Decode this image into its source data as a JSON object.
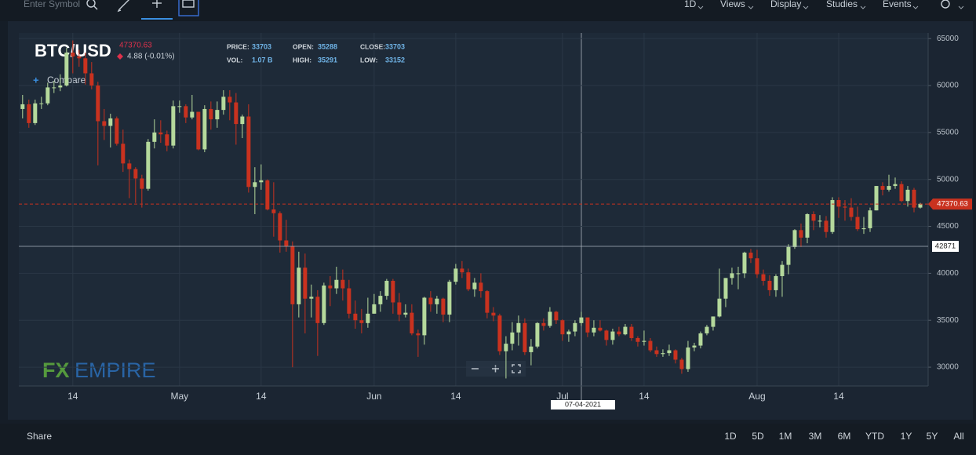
{
  "toolbar": {
    "symbol_placeholder": "Enter Symbol",
    "interval": "1D",
    "menus": [
      "Views",
      "Display",
      "Studies",
      "Events"
    ]
  },
  "chart_data": {
    "type": "candlestick",
    "symbol": "BTC/USD",
    "last_price": 47370.63,
    "change": "4.88 (-0.01%)",
    "compare": "Compare",
    "watermark": [
      "FX",
      "EMPIRE"
    ],
    "stats": [
      [
        {
          "label": "PRICE:",
          "value": 33703
        },
        {
          "label": "OPEN:",
          "value": 35288
        },
        {
          "label": "CLOSE:",
          "value": 33703
        }
      ],
      [
        {
          "label": "VOL:",
          "value": "1.07 B"
        },
        {
          "label": "HIGH:",
          "value": 35291
        },
        {
          "label": "LOW:",
          "value": 33152
        }
      ]
    ],
    "crosshair": {
      "value": 42871,
      "date": "07-04-2021"
    },
    "up_color": "#b5d99c",
    "down_color": "#c9321f",
    "grid": true,
    "ylim": [
      28000,
      65600
    ],
    "yticks": [
      30000,
      35000,
      40000,
      45000,
      50000,
      55000,
      60000,
      65000
    ],
    "xlim": [
      -0.6,
      144.25
    ],
    "xticks": [
      {
        "value": 8,
        "label": "14"
      },
      {
        "value": 25,
        "label": "May"
      },
      {
        "value": 38,
        "label": "14"
      },
      {
        "value": 56,
        "label": "Jun"
      },
      {
        "value": 69,
        "label": "14"
      },
      {
        "value": 86,
        "label": "Jul"
      },
      {
        "value": 99,
        "label": "14"
      },
      {
        "value": 117,
        "label": "Aug"
      },
      {
        "value": 130,
        "label": "14"
      }
    ],
    "open": [
      57500,
      58000,
      56000,
      58100,
      58100,
      59800,
      59800,
      60000,
      63500,
      63100,
      62900,
      61300,
      60000,
      56200,
      55700,
      56500,
      53800,
      51700,
      51100,
      50100,
      49000,
      54000,
      55000,
      54800,
      53600,
      57800,
      57800,
      56600,
      57200,
      53200,
      57500,
      56400,
      57400,
      58800,
      58200,
      55900,
      56700,
      49200,
      49700,
      49900,
      46800,
      46400,
      43500,
      42900,
      36700,
      40600,
      37300,
      37500,
      34700,
      38700,
      38400,
      39300,
      38400,
      35700,
      35000,
      34700,
      35700,
      36700,
      37600,
      39200,
      36900,
      35600,
      35800,
      33600,
      33400,
      37400,
      36700,
      37300,
      35600,
      39100,
      40500,
      40100,
      38300,
      39000,
      38100,
      35800,
      35500,
      31700,
      32500,
      33700,
      34700,
      31600,
      32200,
      34700,
      34400,
      35900,
      35000,
      33500,
      33800,
      34700,
      35300,
      33700,
      34200,
      33900,
      32900,
      33800,
      33500,
      34300,
      33100,
      32700,
      32800,
      31800,
      31400,
      31500,
      31800,
      30800,
      29800,
      32100,
      32300,
      33600,
      34300,
      35400,
      37300,
      39500,
      40000,
      40000,
      42200,
      41600,
      39900,
      39200,
      38200,
      39700,
      40900,
      42800,
      44600,
      43800,
      46300,
      45600,
      45600,
      44400,
      47800,
      47100,
      47000,
      46000,
      44700,
      44800,
      46700,
      49300,
      48900,
      49300,
      49500,
      47700,
      48900,
      47000
    ],
    "high": [
      59000,
      58500,
      58500,
      58800,
      60300,
      60500,
      61200,
      64000,
      64800,
      63800,
      63500,
      62500,
      60400,
      57500,
      57000,
      56700,
      55300,
      52100,
      51300,
      50500,
      54300,
      56400,
      56300,
      55200,
      58400,
      58400,
      58000,
      59000,
      57200,
      57900,
      58300,
      58300,
      59500,
      59500,
      59200,
      56900,
      58000,
      51300,
      51600,
      50000,
      49700,
      46600,
      45700,
      43400,
      42300,
      42100,
      38800,
      38200,
      39000,
      39700,
      40700,
      40400,
      39300,
      37100,
      36200,
      37400,
      37800,
      38100,
      39400,
      39400,
      37900,
      36700,
      36700,
      34000,
      37500,
      38100,
      37600,
      37400,
      39300,
      41000,
      41300,
      40500,
      39500,
      40000,
      38200,
      36400,
      35700,
      33300,
      34800,
      35500,
      35200,
      33000,
      34800,
      35200,
      36400,
      36000,
      35100,
      34000,
      35000,
      35900,
      35300,
      35000,
      35000,
      34000,
      34100,
      34300,
      34600,
      34600,
      33300,
      33900,
      33100,
      32200,
      31900,
      32400,
      31900,
      31000,
      32800,
      32600,
      33800,
      34500,
      35400,
      40500,
      39500,
      40600,
      40700,
      42300,
      42600,
      42500,
      40400,
      39800,
      39900,
      41300,
      43100,
      44700,
      45300,
      46400,
      46600,
      46200,
      46100,
      48100,
      48100,
      47800,
      48000,
      47100,
      46000,
      47000,
      49300,
      49700,
      50500,
      50200,
      49800,
      49300,
      49100,
      47500
    ],
    "low": [
      56500,
      55500,
      55800,
      57500,
      57900,
      59200,
      59400,
      59900,
      61300,
      62000,
      60100,
      59600,
      51500,
      54200,
      53400,
      53600,
      50800,
      48000,
      47500,
      47000,
      48800,
      53300,
      53900,
      53000,
      53300,
      57100,
      56000,
      56400,
      53100,
      52900,
      55300,
      55500,
      56900,
      56300,
      53700,
      54400,
      48600,
      46300,
      48900,
      46700,
      43900,
      42200,
      42300,
      30000,
      35300,
      33600,
      35300,
      31200,
      34500,
      36500,
      37800,
      37100,
      35200,
      34100,
      33600,
      34200,
      35700,
      35900,
      37200,
      35700,
      34900,
      35300,
      33400,
      31100,
      32400,
      35900,
      35700,
      34800,
      34800,
      38800,
      39500,
      38100,
      37500,
      37400,
      35200,
      34900,
      31300,
      28800,
      31800,
      32300,
      31300,
      30200,
      32000,
      33900,
      34200,
      34600,
      32800,
      32700,
      33300,
      34400,
      33200,
      33300,
      33800,
      32300,
      32400,
      33300,
      33400,
      32800,
      32200,
      32300,
      31600,
      31100,
      31100,
      31200,
      30400,
      29300,
      29500,
      31700,
      32000,
      33400,
      33900,
      35300,
      36400,
      38800,
      38300,
      39500,
      41100,
      39500,
      38700,
      37600,
      37500,
      37500,
      39900,
      42600,
      42800,
      43200,
      44600,
      44900,
      43800,
      44200,
      45900,
      45600,
      45600,
      44500,
      44200,
      44400,
      46700,
      48300,
      48700,
      49000,
      47600,
      47100,
      46500,
      46900
    ],
    "close": [
      58000,
      56000,
      58100,
      58100,
      59800,
      59800,
      60000,
      63500,
      63100,
      62900,
      61300,
      60000,
      56200,
      55700,
      56500,
      53800,
      51700,
      51100,
      50100,
      49000,
      54000,
      55000,
      54800,
      53600,
      57800,
      57800,
      56600,
      57200,
      53200,
      57500,
      56400,
      57400,
      58800,
      58200,
      55900,
      56700,
      49200,
      49700,
      49900,
      46800,
      46400,
      43500,
      42900,
      36700,
      40600,
      37300,
      37500,
      34700,
      38700,
      38400,
      39300,
      38400,
      35700,
      35000,
      34700,
      35700,
      36700,
      37600,
      39200,
      36900,
      35600,
      35800,
      33600,
      33400,
      37400,
      36700,
      37300,
      35600,
      39100,
      40500,
      40100,
      38300,
      39000,
      38100,
      35800,
      35500,
      31700,
      32500,
      33700,
      34700,
      31600,
      32200,
      34700,
      34400,
      35900,
      35000,
      33500,
      33800,
      34700,
      35300,
      33700,
      34200,
      33900,
      32900,
      33800,
      33500,
      34300,
      33100,
      32700,
      32800,
      31800,
      31400,
      31500,
      31800,
      30800,
      29800,
      32100,
      32300,
      33600,
      34300,
      35400,
      37300,
      39500,
      40000,
      40000,
      42200,
      41600,
      39900,
      39200,
      38200,
      39700,
      40900,
      42800,
      44600,
      43800,
      46300,
      45600,
      45600,
      44400,
      47800,
      47100,
      47000,
      46000,
      44700,
      44800,
      46700,
      49300,
      48900,
      49300,
      49500,
      47700,
      48900,
      47000,
      47400
    ]
  },
  "footer": {
    "share": "Share",
    "ranges": [
      "1D",
      "5D",
      "1M",
      "3M",
      "6M",
      "YTD",
      "1Y",
      "5Y",
      "All"
    ]
  }
}
